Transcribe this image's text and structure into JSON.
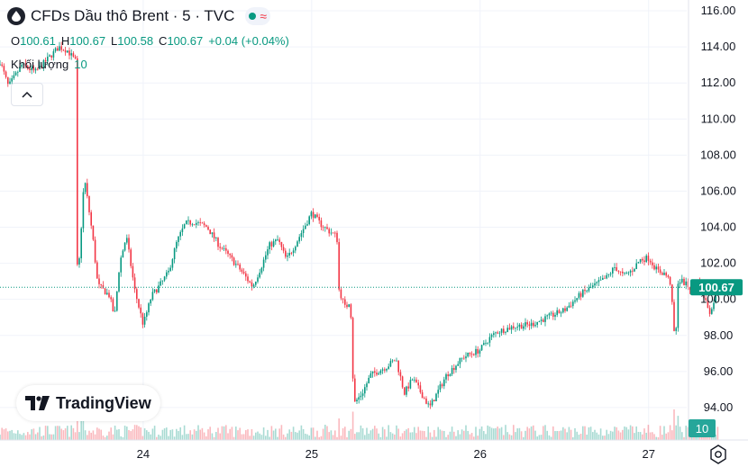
{
  "header": {
    "title": "CFDs Dầu thô Brent · 5 · TVC",
    "approx_symbol": "≈"
  },
  "ohlc": {
    "o_label": "O",
    "o_value": "100.61",
    "h_label": "H",
    "h_value": "100.67",
    "l_label": "L",
    "l_value": "100.58",
    "c_label": "C",
    "c_value": "100.67",
    "change": "+0.04 (+0.04%)"
  },
  "volume": {
    "label": "Khối lượng",
    "value": "10"
  },
  "logo": {
    "text": "TradingView"
  },
  "colors": {
    "up": "#089981",
    "down": "#f23645",
    "grid": "#f0f3fa",
    "axis_text": "#131722",
    "last_price_bg": "#089981"
  },
  "icons": {
    "symbol": "oil-drop-icon",
    "collapse": "chevron-up-icon",
    "settings": "settings-icon",
    "logo": "tradingview-logo-icon"
  },
  "chart_data": {
    "type": "candlestick",
    "title": "CFDs Dầu thô Brent · 5 · TVC",
    "x_tick_labels": [
      "24",
      "25",
      "26",
      "27"
    ],
    "x_ticks_day": [
      24,
      25,
      26,
      27
    ],
    "y_tick_labels": [
      "94.00",
      "96.00",
      "98.00",
      "100.00",
      "102.00",
      "104.00",
      "106.00",
      "108.00",
      "110.00",
      "112.00",
      "114.00",
      "116.00"
    ],
    "y_ticks": [
      94,
      96,
      98,
      100,
      102,
      104,
      106,
      108,
      110,
      112,
      114,
      116
    ],
    "ylim": [
      92.2,
      116.6
    ],
    "xlim_day": [
      23.15,
      27.59
    ],
    "last_price": "100.67",
    "last_volume": "10",
    "grid": true,
    "price_path": [
      [
        23.15,
        113.2
      ],
      [
        23.2,
        111.8
      ],
      [
        23.28,
        113.0
      ],
      [
        23.36,
        112.6
      ],
      [
        23.45,
        113.5
      ],
      [
        23.5,
        114.0
      ],
      [
        23.55,
        113.8
      ],
      [
        23.6,
        113.2
      ],
      [
        23.61,
        100.5
      ],
      [
        23.65,
        106.8
      ],
      [
        23.7,
        103.5
      ],
      [
        23.73,
        100.8
      ],
      [
        23.8,
        100.2
      ],
      [
        23.83,
        99.0
      ],
      [
        23.86,
        102.0
      ],
      [
        23.9,
        103.5
      ],
      [
        23.95,
        100.5
      ],
      [
        24.0,
        98.6
      ],
      [
        24.05,
        100.2
      ],
      [
        24.1,
        100.8
      ],
      [
        24.15,
        101.5
      ],
      [
        24.2,
        103.2
      ],
      [
        24.25,
        104.2
      ],
      [
        24.3,
        104.3
      ],
      [
        24.38,
        104.0
      ],
      [
        24.45,
        103.0
      ],
      [
        24.5,
        102.5
      ],
      [
        24.58,
        101.6
      ],
      [
        24.65,
        100.7
      ],
      [
        24.7,
        101.8
      ],
      [
        24.75,
        103.0
      ],
      [
        24.8,
        103.3
      ],
      [
        24.85,
        102.2
      ],
      [
        24.9,
        103.0
      ],
      [
        25.0,
        104.8
      ],
      [
        25.05,
        104.2
      ],
      [
        25.1,
        103.8
      ],
      [
        25.15,
        103.5
      ],
      [
        25.16,
        100.6
      ],
      [
        25.2,
        99.5
      ],
      [
        25.23,
        100.0
      ],
      [
        25.25,
        94.2
      ],
      [
        25.3,
        94.8
      ],
      [
        25.35,
        95.8
      ],
      [
        25.45,
        96.3
      ],
      [
        25.5,
        96.7
      ],
      [
        25.55,
        94.8
      ],
      [
        25.6,
        95.6
      ],
      [
        25.7,
        94.0
      ],
      [
        25.8,
        95.8
      ],
      [
        25.9,
        96.8
      ],
      [
        26.0,
        97.2
      ],
      [
        26.05,
        97.8
      ],
      [
        26.1,
        98.2
      ],
      [
        26.2,
        98.5
      ],
      [
        26.3,
        98.6
      ],
      [
        26.4,
        99.0
      ],
      [
        26.5,
        99.4
      ],
      [
        26.6,
        100.3
      ],
      [
        26.7,
        100.9
      ],
      [
        26.75,
        101.2
      ],
      [
        26.8,
        101.8
      ],
      [
        26.85,
        101.3
      ],
      [
        26.9,
        101.6
      ],
      [
        26.95,
        102.2
      ],
      [
        27.0,
        102.3
      ],
      [
        27.05,
        101.6
      ],
      [
        27.1,
        101.4
      ],
      [
        27.13,
        100.9
      ],
      [
        27.16,
        97.1
      ],
      [
        27.17,
        101.0
      ],
      [
        27.2,
        101.0
      ],
      [
        27.25,
        100.6
      ],
      [
        27.3,
        101.0
      ],
      [
        27.33,
        100.1
      ],
      [
        27.37,
        99.2
      ],
      [
        27.4,
        100.5
      ],
      [
        27.42,
        100.67
      ]
    ],
    "x_ticks": [],
    "x": []
  }
}
